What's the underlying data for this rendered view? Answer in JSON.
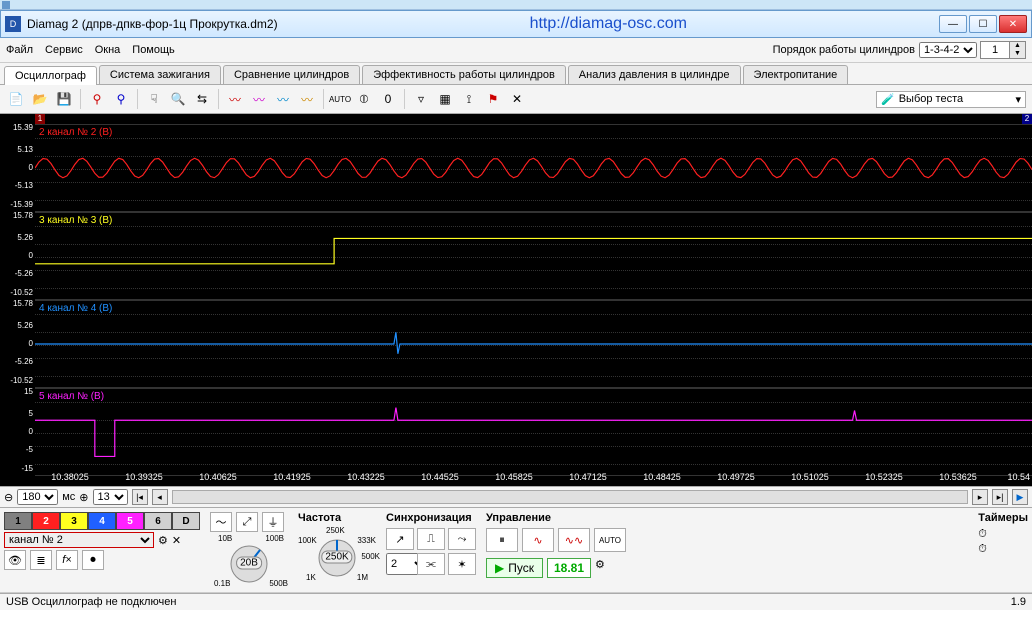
{
  "window": {
    "title": "Diamag 2 (дпрв-дпкв-фор-1ц Прокрутка.dm2)",
    "url": "http://diamag-osc.com"
  },
  "menu": {
    "items": [
      "Файл",
      "Сервис",
      "Окна",
      "Помощь"
    ]
  },
  "settings": {
    "firing_order_label": "Порядок работы цилиндров",
    "firing_order": "1-3-4-2",
    "num": "1"
  },
  "tabs": {
    "items": [
      "Осциллограф",
      "Система зажигания",
      "Сравнение цилиндров",
      "Эффективность работы цилиндров",
      "Анализ давления в цилиндре",
      "Электропитание"
    ],
    "active": 0
  },
  "toolbar": {
    "test_label": "Выбор теста"
  },
  "scope": {
    "background": "#000000",
    "x_ticks": [
      "10.38025",
      "10.39325",
      "10.40625",
      "10.41925",
      "10.43225",
      "10.44525",
      "10.45825",
      "10.47125",
      "10.48425",
      "10.49725",
      "10.51025",
      "10.52325",
      "10.53625",
      "10.54"
    ],
    "marker1": "1",
    "marker2": "2",
    "lanes": [
      {
        "label": "2  канал № 2 (B)",
        "color": "#ff2020",
        "yticks": [
          "15.39",
          "5.13",
          "0",
          "-5.13",
          "-15.39"
        ],
        "shape": "sine"
      },
      {
        "label": "3  канал № 3 (B)",
        "color": "#ffff20",
        "yticks": [
          "15.78",
          "5.26",
          "0",
          "-5.26",
          "-10.52"
        ],
        "shape": "step"
      },
      {
        "label": "4  канал № 4 (B)",
        "color": "#2090ff",
        "yticks": [
          "15.78",
          "5.26",
          "0",
          "-5.26",
          "-10.52"
        ],
        "shape": "flat_blip"
      },
      {
        "label": "5  канал №    (B)",
        "color": "#ff20ff",
        "yticks": [
          "15",
          "5",
          "0",
          "-5",
          "-15"
        ],
        "shape": "pulse"
      }
    ]
  },
  "timebar": {
    "span": "180",
    "unit": "мс",
    "zoom": "13"
  },
  "channels": {
    "buttons": [
      {
        "label": "1",
        "bg": "#808080"
      },
      {
        "label": "2",
        "bg": "#ff2020"
      },
      {
        "label": "3",
        "bg": "#ffff20"
      },
      {
        "label": "4",
        "bg": "#2060ff"
      },
      {
        "label": "5",
        "bg": "#ff20ff"
      },
      {
        "label": "6",
        "bg": "#d0d0d0"
      },
      {
        "label": "D",
        "bg": "#d0d0d0"
      }
    ],
    "selected": "канал № 2"
  },
  "dials": {
    "volt": {
      "center": "20B",
      "labels": [
        "10B",
        "100B",
        "0.1B",
        "500B"
      ]
    },
    "freq_title": "Частота",
    "freq": {
      "center": "250K",
      "labels": [
        "100K",
        "250K",
        "333K",
        "500K",
        "1K",
        "1M"
      ]
    }
  },
  "sync": {
    "title": "Синхронизация",
    "sel": "2"
  },
  "run": {
    "title": "Управление",
    "start": "Пуск",
    "value": "18.81"
  },
  "timers": {
    "title": "Таймеры"
  },
  "status": {
    "text": "USB Осциллограф не подключен",
    "ver": "1.9"
  }
}
